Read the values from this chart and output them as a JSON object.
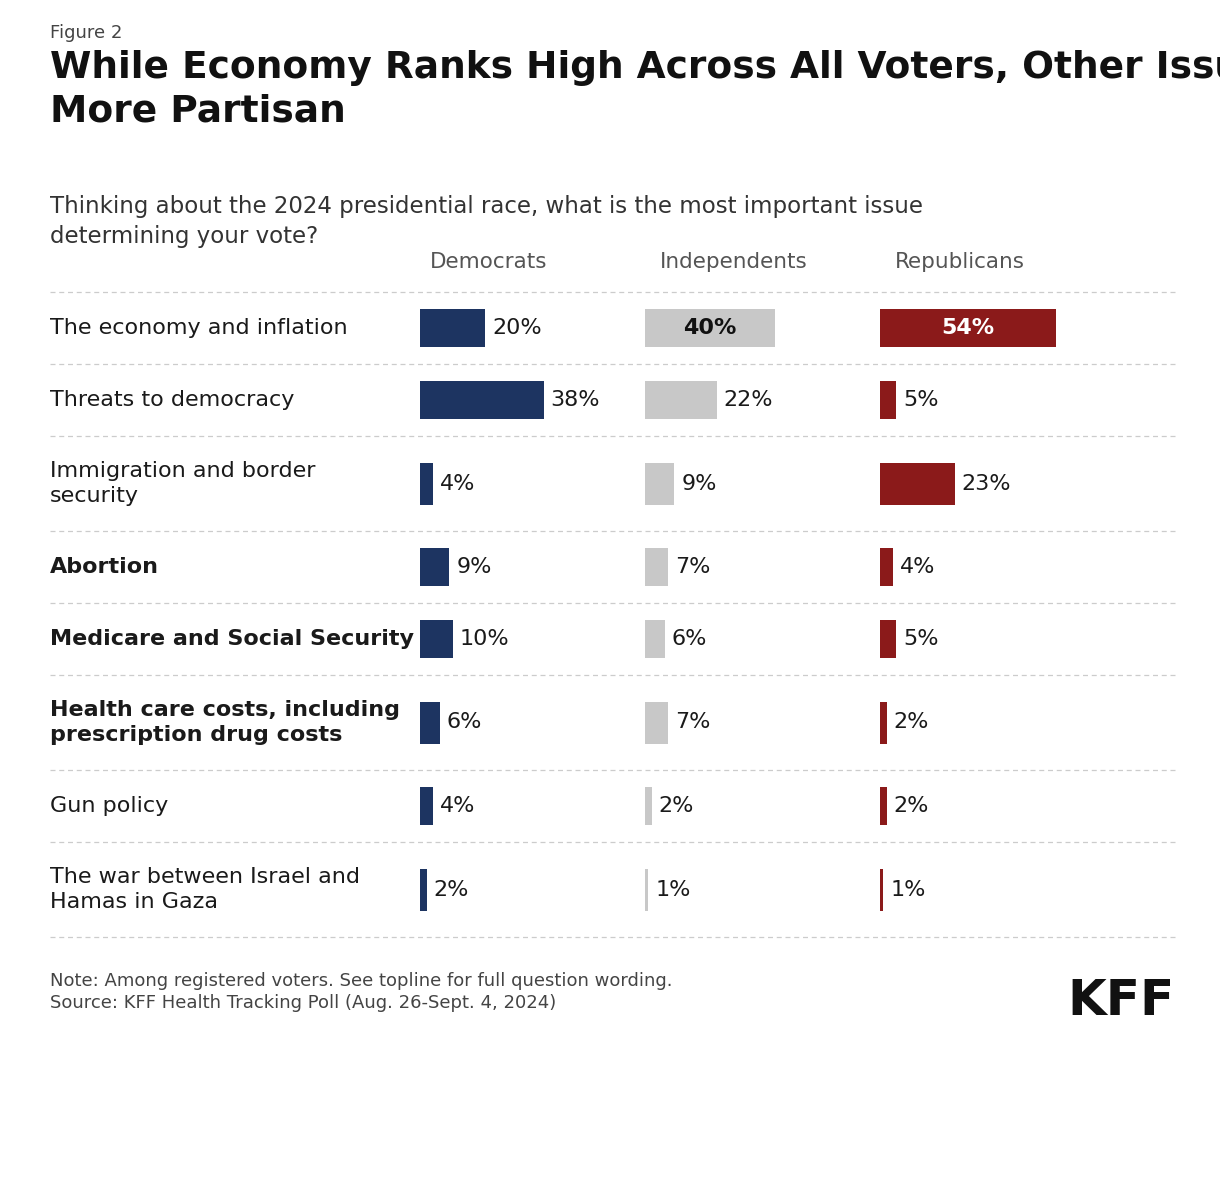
{
  "figure_label": "Figure 2",
  "title": "While Economy Ranks High Across All Voters, Other Issues Are\nMore Partisan",
  "subtitle": "Thinking about the 2024 presidential race, what is the most important issue\ndetermining your vote?",
  "columns": [
    "Democrats",
    "Independents",
    "Republicans"
  ],
  "rows": [
    {
      "label": "The economy and inflation",
      "bold": false,
      "multiline": false,
      "values": [
        20,
        40,
        54
      ],
      "text_inside": [
        false,
        true,
        true
      ]
    },
    {
      "label": "Threats to democracy",
      "bold": false,
      "multiline": false,
      "values": [
        38,
        22,
        5
      ],
      "text_inside": [
        false,
        false,
        false
      ]
    },
    {
      "label": "Immigration and border\nsecurity",
      "bold": false,
      "multiline": true,
      "values": [
        4,
        9,
        23
      ],
      "text_inside": [
        false,
        false,
        false
      ]
    },
    {
      "label": "Abortion",
      "bold": true,
      "multiline": false,
      "values": [
        9,
        7,
        4
      ],
      "text_inside": [
        false,
        false,
        false
      ]
    },
    {
      "label": "Medicare and Social Security",
      "bold": true,
      "multiline": false,
      "values": [
        10,
        6,
        5
      ],
      "text_inside": [
        false,
        false,
        false
      ]
    },
    {
      "label": "Health care costs, including\nprescription drug costs",
      "bold": true,
      "multiline": true,
      "values": [
        6,
        7,
        2
      ],
      "text_inside": [
        false,
        false,
        false
      ]
    },
    {
      "label": "Gun policy",
      "bold": false,
      "multiline": false,
      "values": [
        4,
        2,
        2
      ],
      "text_inside": [
        false,
        false,
        false
      ]
    },
    {
      "label": "The war between Israel and\nHamas in Gaza",
      "bold": false,
      "multiline": true,
      "values": [
        2,
        1,
        1
      ],
      "text_inside": [
        false,
        false,
        false
      ]
    }
  ],
  "note_line1": "Note: Among registered voters. See topline for full question wording.",
  "note_line2": "Source: KFF Health Tracking Poll (Aug. 26-Sept. 4, 2024)",
  "kff_label": "KFF",
  "dem_color": "#1d3461",
  "ind_color": "#c8c8c8",
  "rep_color": "#8b1a1a",
  "background_color": "#ffffff",
  "text_color": "#222222",
  "divider_color": "#cccccc",
  "label_gray": "#555555",
  "col_header_color": "#555555"
}
